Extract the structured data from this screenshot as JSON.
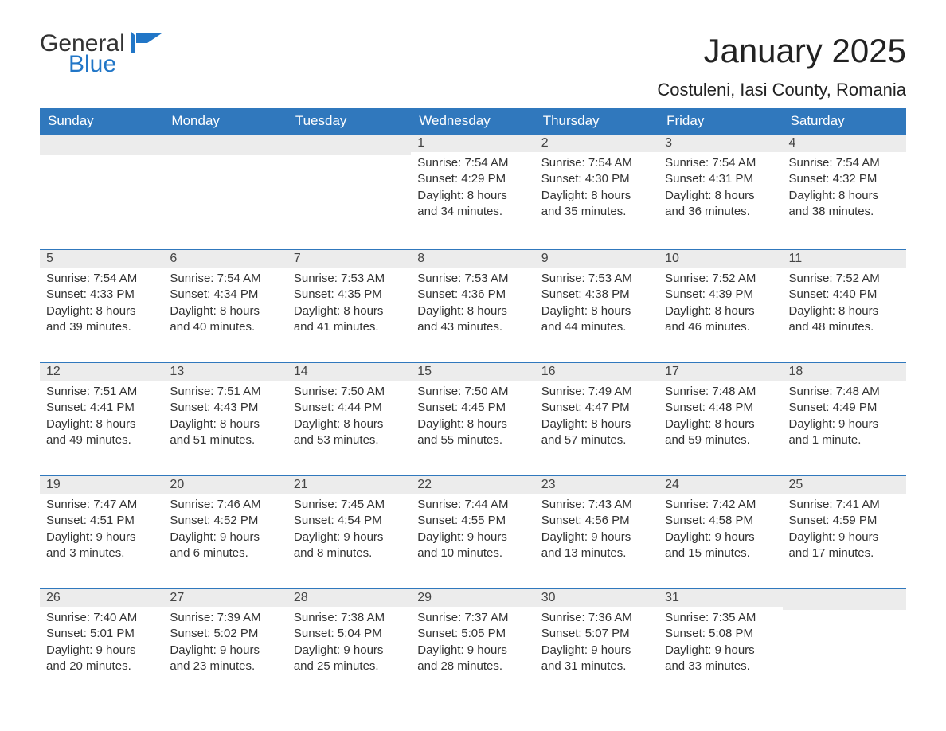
{
  "brand": {
    "general": "General",
    "blue": "Blue"
  },
  "title": "January 2025",
  "location": "Costuleni, Iasi County, Romania",
  "colors": {
    "header_bg": "#3078bd",
    "header_fg": "#ffffff",
    "daynum_bg": "#ececec",
    "row_divider": "#3078bd",
    "text": "#333333",
    "brand_blue": "#2176c7"
  },
  "weekdays": [
    "Sunday",
    "Monday",
    "Tuesday",
    "Wednesday",
    "Thursday",
    "Friday",
    "Saturday"
  ],
  "weeks": [
    [
      null,
      null,
      null,
      {
        "n": "1",
        "sr": "7:54 AM",
        "ss": "4:29 PM",
        "dl": "8 hours and 34 minutes."
      },
      {
        "n": "2",
        "sr": "7:54 AM",
        "ss": "4:30 PM",
        "dl": "8 hours and 35 minutes."
      },
      {
        "n": "3",
        "sr": "7:54 AM",
        "ss": "4:31 PM",
        "dl": "8 hours and 36 minutes."
      },
      {
        "n": "4",
        "sr": "7:54 AM",
        "ss": "4:32 PM",
        "dl": "8 hours and 38 minutes."
      }
    ],
    [
      {
        "n": "5",
        "sr": "7:54 AM",
        "ss": "4:33 PM",
        "dl": "8 hours and 39 minutes."
      },
      {
        "n": "6",
        "sr": "7:54 AM",
        "ss": "4:34 PM",
        "dl": "8 hours and 40 minutes."
      },
      {
        "n": "7",
        "sr": "7:53 AM",
        "ss": "4:35 PM",
        "dl": "8 hours and 41 minutes."
      },
      {
        "n": "8",
        "sr": "7:53 AM",
        "ss": "4:36 PM",
        "dl": "8 hours and 43 minutes."
      },
      {
        "n": "9",
        "sr": "7:53 AM",
        "ss": "4:38 PM",
        "dl": "8 hours and 44 minutes."
      },
      {
        "n": "10",
        "sr": "7:52 AM",
        "ss": "4:39 PM",
        "dl": "8 hours and 46 minutes."
      },
      {
        "n": "11",
        "sr": "7:52 AM",
        "ss": "4:40 PM",
        "dl": "8 hours and 48 minutes."
      }
    ],
    [
      {
        "n": "12",
        "sr": "7:51 AM",
        "ss": "4:41 PM",
        "dl": "8 hours and 49 minutes."
      },
      {
        "n": "13",
        "sr": "7:51 AM",
        "ss": "4:43 PM",
        "dl": "8 hours and 51 minutes."
      },
      {
        "n": "14",
        "sr": "7:50 AM",
        "ss": "4:44 PM",
        "dl": "8 hours and 53 minutes."
      },
      {
        "n": "15",
        "sr": "7:50 AM",
        "ss": "4:45 PM",
        "dl": "8 hours and 55 minutes."
      },
      {
        "n": "16",
        "sr": "7:49 AM",
        "ss": "4:47 PM",
        "dl": "8 hours and 57 minutes."
      },
      {
        "n": "17",
        "sr": "7:48 AM",
        "ss": "4:48 PM",
        "dl": "8 hours and 59 minutes."
      },
      {
        "n": "18",
        "sr": "7:48 AM",
        "ss": "4:49 PM",
        "dl": "9 hours and 1 minute."
      }
    ],
    [
      {
        "n": "19",
        "sr": "7:47 AM",
        "ss": "4:51 PM",
        "dl": "9 hours and 3 minutes."
      },
      {
        "n": "20",
        "sr": "7:46 AM",
        "ss": "4:52 PM",
        "dl": "9 hours and 6 minutes."
      },
      {
        "n": "21",
        "sr": "7:45 AM",
        "ss": "4:54 PM",
        "dl": "9 hours and 8 minutes."
      },
      {
        "n": "22",
        "sr": "7:44 AM",
        "ss": "4:55 PM",
        "dl": "9 hours and 10 minutes."
      },
      {
        "n": "23",
        "sr": "7:43 AM",
        "ss": "4:56 PM",
        "dl": "9 hours and 13 minutes."
      },
      {
        "n": "24",
        "sr": "7:42 AM",
        "ss": "4:58 PM",
        "dl": "9 hours and 15 minutes."
      },
      {
        "n": "25",
        "sr": "7:41 AM",
        "ss": "4:59 PM",
        "dl": "9 hours and 17 minutes."
      }
    ],
    [
      {
        "n": "26",
        "sr": "7:40 AM",
        "ss": "5:01 PM",
        "dl": "9 hours and 20 minutes."
      },
      {
        "n": "27",
        "sr": "7:39 AM",
        "ss": "5:02 PM",
        "dl": "9 hours and 23 minutes."
      },
      {
        "n": "28",
        "sr": "7:38 AM",
        "ss": "5:04 PM",
        "dl": "9 hours and 25 minutes."
      },
      {
        "n": "29",
        "sr": "7:37 AM",
        "ss": "5:05 PM",
        "dl": "9 hours and 28 minutes."
      },
      {
        "n": "30",
        "sr": "7:36 AM",
        "ss": "5:07 PM",
        "dl": "9 hours and 31 minutes."
      },
      {
        "n": "31",
        "sr": "7:35 AM",
        "ss": "5:08 PM",
        "dl": "9 hours and 33 minutes."
      },
      null
    ]
  ],
  "labels": {
    "sunrise": "Sunrise: ",
    "sunset": "Sunset: ",
    "daylight": "Daylight: "
  }
}
